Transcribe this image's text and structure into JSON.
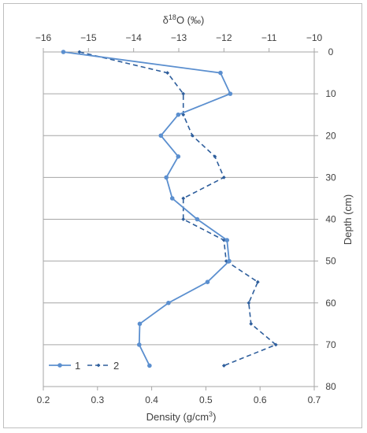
{
  "chart_data": {
    "type": "line",
    "orientation": "depth-profile (y axis inverted, increasing downward)",
    "top_axis": {
      "title": "δ18O (‰)",
      "range": [
        -16,
        -10
      ],
      "ticks": [
        "−16",
        "−15",
        "−14",
        "−13",
        "−12",
        "−11",
        "−10"
      ],
      "tick_values": [
        -16,
        -15,
        -14,
        -13,
        -12,
        -11,
        -10
      ]
    },
    "bottom_axis": {
      "title": "Density (g/cm3)",
      "range": [
        0.2,
        0.7
      ],
      "ticks": [
        "0.2",
        "0.3",
        "0.4",
        "0.5",
        "0.6",
        "0.7"
      ],
      "tick_values": [
        0.2,
        0.3,
        0.4,
        0.5,
        0.6,
        0.7
      ]
    },
    "right_axis": {
      "title": "Depth (cm)",
      "range": [
        0,
        80
      ],
      "inverted": true,
      "ticks": [
        "0",
        "10",
        "20",
        "30",
        "40",
        "50",
        "60",
        "70",
        "80"
      ],
      "tick_values": [
        0,
        10,
        20,
        30,
        40,
        50,
        60,
        70,
        80
      ]
    },
    "grid": "horizontal",
    "legend_position": "bottom-left",
    "series": [
      {
        "name": "1",
        "style": "solid",
        "marker": "circle",
        "color": "#5b8fcf",
        "points": [
          {
            "x": 0.237,
            "depth": 0
          },
          {
            "x": 0.527,
            "depth": 5
          },
          {
            "x": 0.545,
            "depth": 10
          },
          {
            "x": 0.449,
            "depth": 15
          },
          {
            "x": 0.417,
            "depth": 20
          },
          {
            "x": 0.449,
            "depth": 25
          },
          {
            "x": 0.427,
            "depth": 30
          },
          {
            "x": 0.438,
            "depth": 35
          },
          {
            "x": 0.484,
            "depth": 40
          },
          {
            "x": 0.539,
            "depth": 45
          },
          {
            "x": 0.543,
            "depth": 50
          },
          {
            "x": 0.503,
            "depth": 55
          },
          {
            "x": 0.431,
            "depth": 60
          },
          {
            "x": 0.378,
            "depth": 65
          },
          {
            "x": 0.377,
            "depth": 70
          },
          {
            "x": 0.396,
            "depth": 75
          }
        ]
      },
      {
        "name": "2",
        "style": "dashed",
        "marker": "small diamond",
        "color": "#2e5e9c",
        "points": [
          {
            "x": -15.2,
            "depth": 0
          },
          {
            "x": -13.25,
            "depth": 5
          },
          {
            "x": -12.9,
            "depth": 10
          },
          {
            "x": -12.9,
            "depth": 15
          },
          {
            "x": -12.7,
            "depth": 20
          },
          {
            "x": -12.2,
            "depth": 25
          },
          {
            "x": -12.0,
            "depth": 30
          },
          {
            "x": -12.9,
            "depth": 35
          },
          {
            "x": -12.9,
            "depth": 40
          },
          {
            "x": -12.0,
            "depth": 45
          },
          {
            "x": -11.95,
            "depth": 50
          },
          {
            "x": -11.25,
            "depth": 55
          },
          {
            "x": -11.45,
            "depth": 60
          },
          {
            "x": -11.4,
            "depth": 65
          },
          {
            "x": -10.85,
            "depth": 70
          },
          {
            "x": -12.0,
            "depth": 75
          }
        ]
      }
    ],
    "legend": [
      {
        "label": "1",
        "style": "solid"
      },
      {
        "label": "2",
        "style": "dashed"
      }
    ],
    "colors": {
      "series1": "#5b8fcf",
      "series2": "#2e5e9c",
      "grid": "#a6a6a6",
      "axis": "#a6a6a6",
      "text": "#404040"
    }
  }
}
